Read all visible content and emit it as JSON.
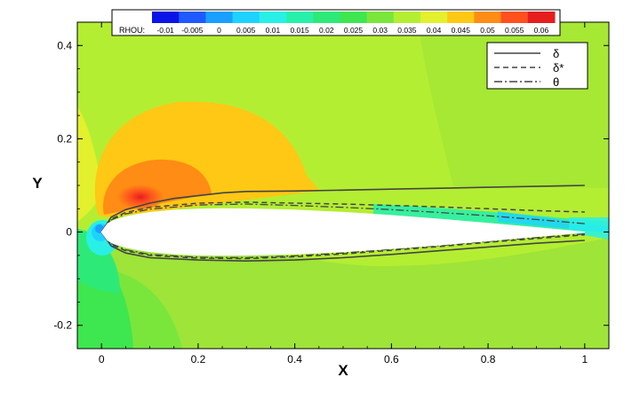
{
  "chart_data": {
    "type": "contour",
    "xlabel": "X",
    "ylabel": "Y",
    "xlim": [
      -0.05,
      1.05
    ],
    "ylim": [
      -0.25,
      0.45
    ],
    "x_ticks": [
      {
        "value": 0,
        "label": "0"
      },
      {
        "value": 0.2,
        "label": "0.2"
      },
      {
        "value": 0.4,
        "label": "0.4"
      },
      {
        "value": 0.6,
        "label": "0.6"
      },
      {
        "value": 0.8,
        "label": "0.8"
      },
      {
        "value": 1.0,
        "label": "1"
      }
    ],
    "y_ticks": [
      {
        "value": -0.2,
        "label": "-0.2"
      },
      {
        "value": 0,
        "label": "0"
      },
      {
        "value": 0.2,
        "label": "0.2"
      },
      {
        "value": 0.4,
        "label": "0.4"
      }
    ],
    "colorbar": {
      "label": "RHOU:",
      "levels": [
        {
          "value": "-0.01",
          "color": "#0a14e6"
        },
        {
          "value": "-0.005",
          "color": "#1e5aff"
        },
        {
          "value": "0",
          "color": "#19a0ff"
        },
        {
          "value": "0.005",
          "color": "#1ed2ff"
        },
        {
          "value": "0.01",
          "color": "#28f0e6"
        },
        {
          "value": "0.015",
          "color": "#28f0aa"
        },
        {
          "value": "0.02",
          "color": "#2dea78"
        },
        {
          "value": "0.025",
          "color": "#3ee650"
        },
        {
          "value": "0.03",
          "color": "#7ae63c"
        },
        {
          "value": "0.035",
          "color": "#b4ee32"
        },
        {
          "value": "0.04",
          "color": "#e2f02d"
        },
        {
          "value": "0.045",
          "color": "#ffc814"
        },
        {
          "value": "0.05",
          "color": "#ff8c14"
        },
        {
          "value": "0.055",
          "color": "#ff501e"
        },
        {
          "value": "0.06",
          "color": "#e61e1e"
        }
      ]
    },
    "legend": {
      "position": "top-right",
      "entries": [
        {
          "label": "δ",
          "style": "solid"
        },
        {
          "label": "δ*",
          "style": "dashed"
        },
        {
          "label": "θ",
          "style": "dashdot"
        }
      ]
    },
    "series": [
      {
        "name": "δ",
        "upper": [
          [
            0.0,
            0.0
          ],
          [
            0.02,
            0.032
          ],
          [
            0.05,
            0.048
          ],
          [
            0.1,
            0.062
          ],
          [
            0.15,
            0.072
          ],
          [
            0.2,
            0.078
          ],
          [
            0.25,
            0.084
          ],
          [
            0.3,
            0.087
          ],
          [
            0.4,
            0.088
          ],
          [
            0.5,
            0.09
          ],
          [
            0.6,
            0.092
          ],
          [
            0.7,
            0.094
          ],
          [
            0.8,
            0.096
          ],
          [
            0.9,
            0.098
          ],
          [
            1.0,
            0.1
          ]
        ],
        "lower": [
          [
            0.0,
            0.0
          ],
          [
            0.02,
            -0.03
          ],
          [
            0.05,
            -0.045
          ],
          [
            0.1,
            -0.055
          ],
          [
            0.2,
            -0.06
          ],
          [
            0.3,
            -0.062
          ],
          [
            0.4,
            -0.06
          ],
          [
            0.5,
            -0.055
          ],
          [
            0.6,
            -0.048
          ],
          [
            0.7,
            -0.04
          ],
          [
            0.8,
            -0.032
          ],
          [
            0.9,
            -0.024
          ],
          [
            1.0,
            -0.018
          ]
        ]
      },
      {
        "name": "δ*",
        "upper": [
          [
            0.0,
            0.0
          ],
          [
            0.02,
            0.028
          ],
          [
            0.05,
            0.042
          ],
          [
            0.1,
            0.053
          ],
          [
            0.2,
            0.062
          ],
          [
            0.3,
            0.064
          ],
          [
            0.4,
            0.062
          ],
          [
            0.5,
            0.06
          ],
          [
            0.6,
            0.057
          ],
          [
            0.7,
            0.054
          ],
          [
            0.8,
            0.05
          ],
          [
            0.9,
            0.046
          ],
          [
            1.0,
            0.043
          ]
        ],
        "lower": [
          [
            0.0,
            0.0
          ],
          [
            0.02,
            -0.027
          ],
          [
            0.05,
            -0.04
          ],
          [
            0.1,
            -0.05
          ],
          [
            0.2,
            -0.056
          ],
          [
            0.3,
            -0.057
          ],
          [
            0.4,
            -0.053
          ],
          [
            0.5,
            -0.047
          ],
          [
            0.6,
            -0.039
          ],
          [
            0.7,
            -0.031
          ],
          [
            0.8,
            -0.022
          ],
          [
            0.9,
            -0.014
          ],
          [
            1.0,
            -0.006
          ]
        ]
      },
      {
        "name": "θ",
        "upper": [
          [
            0.0,
            0.0
          ],
          [
            0.02,
            0.026
          ],
          [
            0.05,
            0.039
          ],
          [
            0.1,
            0.049
          ],
          [
            0.2,
            0.058
          ],
          [
            0.3,
            0.06
          ],
          [
            0.4,
            0.057
          ],
          [
            0.5,
            0.053
          ],
          [
            0.6,
            0.048
          ],
          [
            0.7,
            0.042
          ],
          [
            0.8,
            0.035
          ],
          [
            0.9,
            0.027
          ],
          [
            1.0,
            0.018
          ]
        ],
        "lower": [
          [
            0.0,
            0.0
          ],
          [
            0.02,
            -0.025
          ],
          [
            0.05,
            -0.038
          ],
          [
            0.1,
            -0.048
          ],
          [
            0.2,
            -0.054
          ],
          [
            0.3,
            -0.055
          ],
          [
            0.4,
            -0.051
          ],
          [
            0.5,
            -0.045
          ],
          [
            0.6,
            -0.037
          ],
          [
            0.7,
            -0.029
          ],
          [
            0.8,
            -0.02
          ],
          [
            0.9,
            -0.012
          ],
          [
            1.0,
            -0.004
          ]
        ]
      }
    ],
    "airfoil": {
      "upper": [
        [
          0.0,
          0.0
        ],
        [
          0.0125,
          0.0178
        ],
        [
          0.025,
          0.0245
        ],
        [
          0.05,
          0.0327
        ],
        [
          0.075,
          0.038
        ],
        [
          0.1,
          0.0419
        ],
        [
          0.15,
          0.0469
        ],
        [
          0.2,
          0.0493
        ],
        [
          0.25,
          0.0499
        ],
        [
          0.3,
          0.0496
        ],
        [
          0.4,
          0.0471
        ],
        [
          0.5,
          0.0421
        ],
        [
          0.6,
          0.0355
        ],
        [
          0.7,
          0.0276
        ],
        [
          0.8,
          0.0188
        ],
        [
          0.9,
          0.0094
        ],
        [
          1.0,
          0.0
        ]
      ],
      "lower": [
        [
          0.0,
          0.0
        ],
        [
          0.0125,
          -0.0178
        ],
        [
          0.025,
          -0.0245
        ],
        [
          0.05,
          -0.0327
        ],
        [
          0.075,
          -0.038
        ],
        [
          0.1,
          -0.0419
        ],
        [
          0.15,
          -0.0469
        ],
        [
          0.2,
          -0.0493
        ],
        [
          0.25,
          -0.0499
        ],
        [
          0.3,
          -0.0496
        ],
        [
          0.4,
          -0.0471
        ],
        [
          0.5,
          -0.0421
        ],
        [
          0.6,
          -0.0355
        ],
        [
          0.7,
          -0.0276
        ],
        [
          0.8,
          -0.0188
        ],
        [
          0.9,
          -0.0094
        ],
        [
          1.0,
          0.0
        ]
      ]
    },
    "background_color": "#a8e838"
  }
}
